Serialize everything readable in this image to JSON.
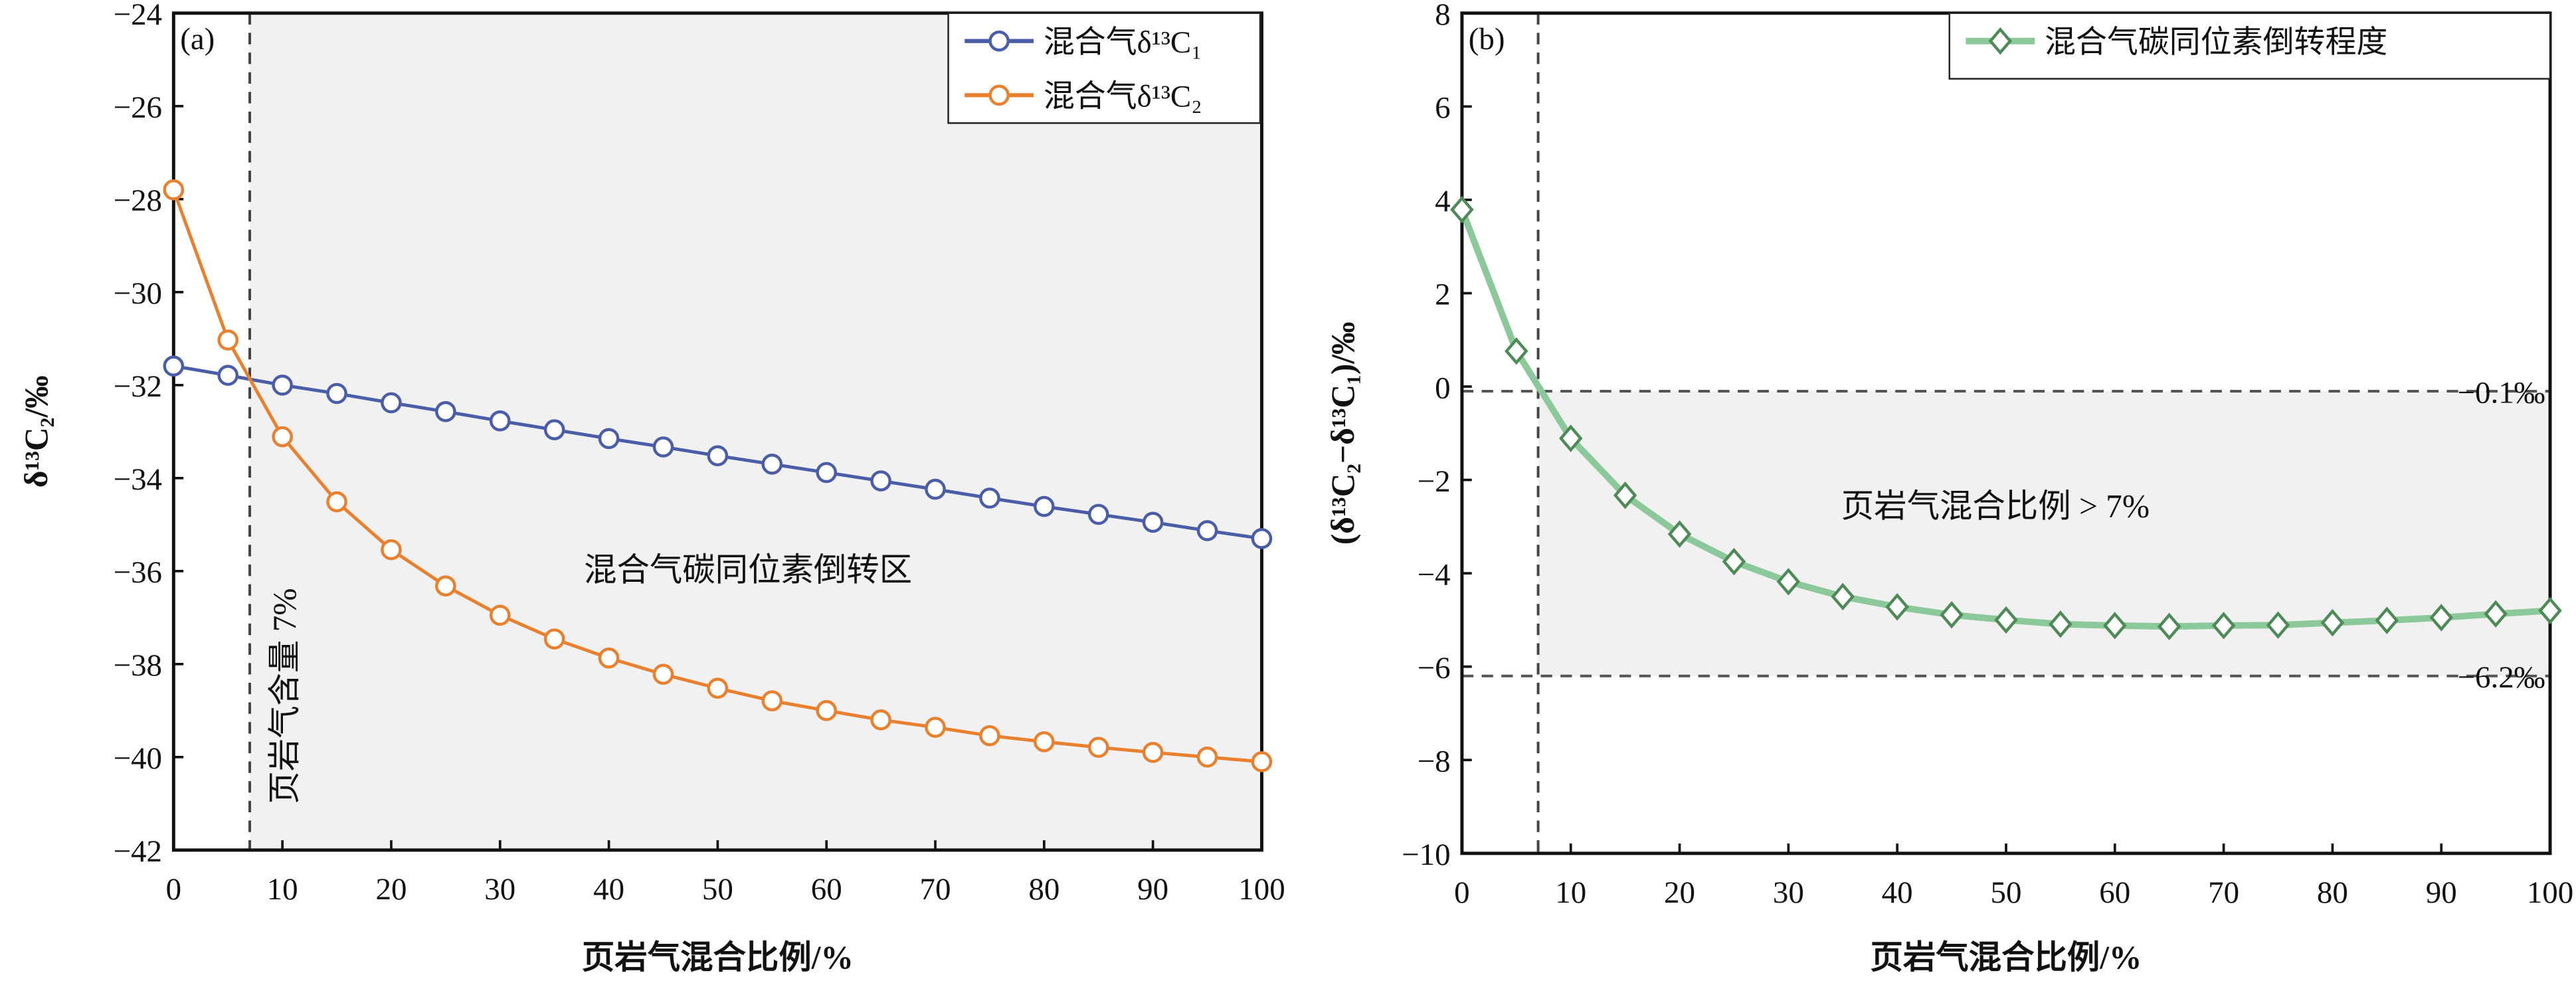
{
  "chart_data": [
    {
      "type": "line",
      "panel_label": "(a)",
      "xlabel": "页岩气混合比例/%",
      "ylabel": "δ¹³C₂/‰",
      "xlim": [
        0,
        100
      ],
      "ylim": [
        -42,
        -24
      ],
      "xticks": [
        0,
        10,
        20,
        30,
        40,
        50,
        60,
        70,
        80,
        90,
        100
      ],
      "yticks": [
        -42,
        -40,
        -38,
        -36,
        -34,
        -32,
        -30,
        -28,
        -26,
        -24
      ],
      "x": [
        0,
        5,
        10,
        15,
        20,
        25,
        30,
        35,
        40,
        45,
        50,
        55,
        60,
        65,
        70,
        75,
        80,
        85,
        90,
        95,
        100
      ],
      "series": [
        {
          "name": "混合气δ¹³C₁",
          "color": "#4a5ea8",
          "marker": "circle",
          "values": [
            -31.59,
            -31.79,
            -32.0,
            -32.18,
            -32.38,
            -32.57,
            -32.77,
            -32.96,
            -33.15,
            -33.33,
            -33.52,
            -33.7,
            -33.88,
            -34.06,
            -34.24,
            -34.43,
            -34.61,
            -34.78,
            -34.95,
            -35.13,
            -35.3
          ]
        },
        {
          "name": "混合气δ¹³C₂",
          "color": "#e8802e",
          "marker": "circle",
          "values": [
            -27.8,
            -31.03,
            -33.11,
            -34.51,
            -35.54,
            -36.32,
            -36.95,
            -37.46,
            -37.87,
            -38.22,
            -38.52,
            -38.79,
            -39.0,
            -39.2,
            -39.36,
            -39.54,
            -39.67,
            -39.79,
            -39.9,
            -40.0,
            -40.1
          ]
        }
      ],
      "legend_position": "top-right",
      "vline": {
        "x": 7,
        "label": "页岩气含量 7%"
      },
      "shaded_region": {
        "x": [
          7,
          100
        ],
        "y": [
          -42,
          -24
        ]
      },
      "annotation": "混合气碳同位素倒转区"
    },
    {
      "type": "line",
      "panel_label": "(b)",
      "xlabel": "页岩气混合比例/%",
      "ylabel": "(δ¹³C₂−δ¹³C₁)/‰",
      "xlim": [
        0,
        100
      ],
      "ylim": [
        -10,
        8
      ],
      "xticks": [
        0,
        10,
        20,
        30,
        40,
        50,
        60,
        70,
        80,
        90,
        100
      ],
      "yticks": [
        -10,
        -8,
        -6,
        -4,
        -2,
        0,
        2,
        4,
        6,
        8
      ],
      "x": [
        0,
        5,
        10,
        15,
        20,
        25,
        30,
        35,
        40,
        45,
        50,
        55,
        60,
        65,
        70,
        75,
        80,
        85,
        90,
        95,
        100
      ],
      "series": [
        {
          "name": "混合气碳同位素倒转程度",
          "color": "#8cc99a",
          "marker_color": "#4e8a55",
          "marker": "diamond",
          "values": [
            3.79,
            0.76,
            -1.11,
            -2.33,
            -3.16,
            -3.75,
            -4.18,
            -4.5,
            -4.72,
            -4.89,
            -5.0,
            -5.09,
            -5.12,
            -5.14,
            -5.12,
            -5.11,
            -5.06,
            -5.01,
            -4.95,
            -4.87,
            -4.8
          ]
        }
      ],
      "legend_position": "top-right",
      "vline": {
        "x": 7
      },
      "hlines": [
        {
          "y": -0.1,
          "label": "−0.1‰"
        },
        {
          "y": -6.2,
          "label": "−6.2‰"
        }
      ],
      "shaded_region": {
        "x": [
          7,
          100
        ],
        "y": [
          -6.2,
          -0.1
        ]
      },
      "annotation": "页岩气混合比例 > 7%"
    }
  ]
}
